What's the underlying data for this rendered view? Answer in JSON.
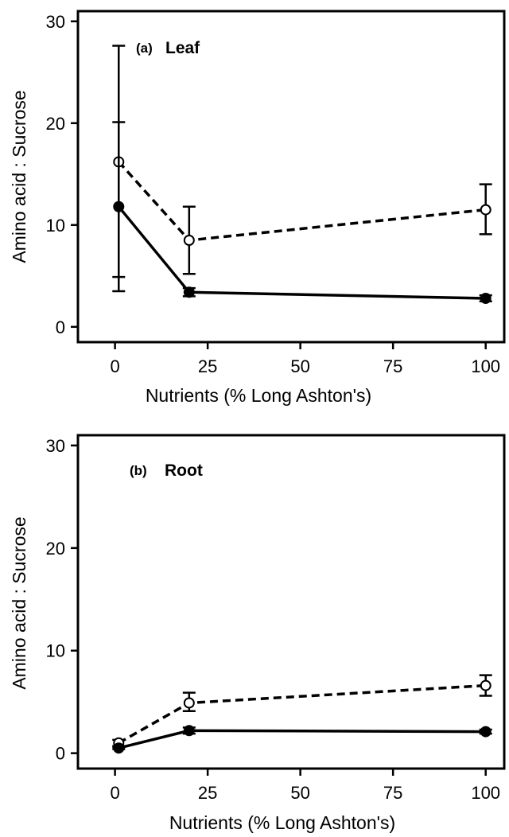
{
  "chart_data": [
    {
      "type": "line",
      "panel_label": "(a)",
      "title": "Leaf",
      "xlabel": "Nutrients (% Long Ashton's)",
      "ylabel": "Amino acid : Sucrose",
      "xlim": [
        -10,
        105
      ],
      "ylim": [
        -1.5,
        31
      ],
      "xticks": [
        0,
        25,
        50,
        75,
        100
      ],
      "yticks": [
        0,
        10,
        20,
        30
      ],
      "grid": false,
      "series": [
        {
          "marker": "open-circle",
          "line_style": "dashed",
          "x": [
            1,
            20,
            100
          ],
          "y": [
            16.2,
            8.5,
            11.5
          ],
          "err_low": [
            3.5,
            5.2,
            9.1
          ],
          "err_high": [
            27.6,
            11.8,
            14.0
          ]
        },
        {
          "marker": "filled-circle",
          "line_style": "solid",
          "x": [
            1,
            20,
            100
          ],
          "y": [
            11.8,
            3.4,
            2.8
          ],
          "err_low": [
            4.9,
            3.0,
            2.5
          ],
          "err_high": [
            20.1,
            3.8,
            3.1
          ]
        }
      ]
    },
    {
      "type": "line",
      "panel_label": "(b)",
      "title": "Root",
      "xlabel": "Nutrients (% Long Ashton's)",
      "ylabel": "Amino acid : Sucrose",
      "xlim": [
        -10,
        105
      ],
      "ylim": [
        -1.5,
        31
      ],
      "xticks": [
        0,
        25,
        50,
        75,
        100
      ],
      "yticks": [
        0,
        10,
        20,
        30
      ],
      "grid": false,
      "series": [
        {
          "marker": "open-circle",
          "line_style": "dashed",
          "x": [
            1,
            20,
            100
          ],
          "y": [
            1.0,
            4.9,
            6.6
          ],
          "err_low": [
            0.7,
            4.1,
            5.6
          ],
          "err_high": [
            1.3,
            5.9,
            7.6
          ]
        },
        {
          "marker": "filled-circle",
          "line_style": "solid",
          "x": [
            1,
            20,
            100
          ],
          "y": [
            0.5,
            2.2,
            2.1
          ],
          "err_low": [
            0.4,
            1.9,
            1.9
          ],
          "err_high": [
            0.6,
            2.5,
            2.3
          ]
        }
      ]
    }
  ]
}
